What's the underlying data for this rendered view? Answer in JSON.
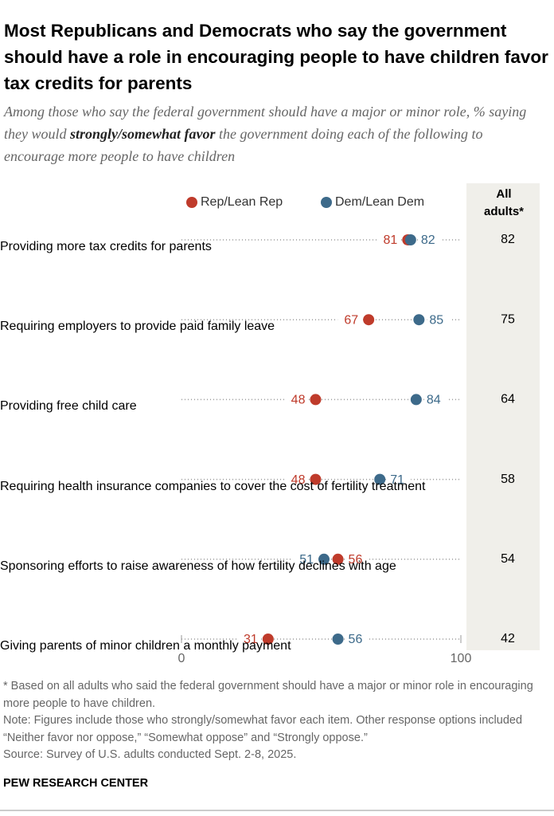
{
  "chart_data": {
    "type": "dot",
    "title": "Most Republicans and Democrats who say the government should have a role in encouraging people to have children favor tax credits for parents",
    "subtitle": [
      "Among those who say the federal government should have a major or minor role, % saying they would ",
      "strongly/somewhat favor",
      " the government doing each of the following to encourage more people to have children"
    ],
    "categories": [
      "Providing more tax credits for parents",
      "Requiring employers to provide paid family leave",
      "Providing free child care",
      "Requiring health insurance companies to cover the cost of fertility treatment",
      "Sponsoring efforts to raise awareness of how fertility declines with age",
      "Giving parents of minor children a monthly payment"
    ],
    "series": [
      {
        "name": "Rep/Lean Rep",
        "color": "#bf3b2b",
        "values": [
          81,
          67,
          48,
          48,
          56,
          31
        ]
      },
      {
        "name": "Dem/Lean Dem",
        "color": "#3d6a8a",
        "values": [
          82,
          85,
          84,
          71,
          51,
          56
        ]
      }
    ],
    "total": {
      "name": "All adults*",
      "values": [
        82,
        75,
        64,
        58,
        54,
        42
      ]
    },
    "xlim": [
      0,
      100
    ],
    "xticks": [
      0,
      100
    ],
    "footnote": "* Based on all adults who said the federal government should have a major or minor role in encouraging more people to have children.",
    "note": "Note: Figures include those who strongly/somewhat favor each item. Other response options included “Neither favor nor oppose,” “Somewhat oppose” and “Strongly oppose.”",
    "source": "Source: Survey of U.S. adults conducted Sept. 2-8, 2025.",
    "brand": "PEW RESEARCH CENTER"
  }
}
